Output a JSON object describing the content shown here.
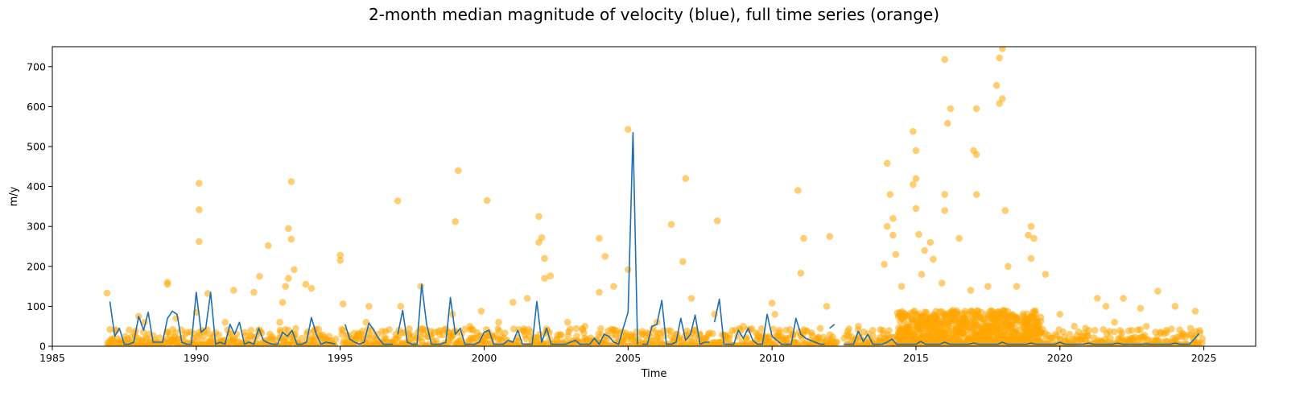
{
  "chart_data": {
    "type": "scatter",
    "title": "2-month median magnitude of velocity (blue), full time series (orange)",
    "xlabel": "Time",
    "ylabel": "m/y",
    "xlim": [
      1985,
      2026.8
    ],
    "ylim": [
      0,
      750
    ],
    "x_ticks": [
      1985,
      1990,
      1995,
      2000,
      2005,
      2010,
      2015,
      2020,
      2025
    ],
    "y_ticks": [
      0,
      100,
      200,
      300,
      400,
      500,
      600,
      700
    ],
    "grid": false,
    "legend": "none",
    "colors": {
      "median": "#1f6fb0",
      "full": "#ffa500"
    },
    "series": [
      {
        "kind": "scatter",
        "color": "#ffa500",
        "x": [
          1986.9,
          1987.0,
          1987.3,
          1987.6,
          1988.0,
          1988.2,
          1988.5,
          1989.0,
          1989.0,
          1989.3,
          1989.5,
          1989.9,
          1990.0,
          1990.1,
          1990.1,
          1990.1,
          1990.2,
          1990.4,
          1990.9,
          1991.0,
          1991.3,
          1991.4,
          1991.9,
          1992.0,
          1992.2,
          1992.5,
          1992.9,
          1993.0,
          1993.1,
          1993.2,
          1993.2,
          1993.3,
          1993.3,
          1993.4,
          1993.8,
          1994.0,
          1994.1,
          1994.5,
          1995.0,
          1995.0,
          1995.1,
          1995.1,
          1995.5,
          1995.9,
          1996.0,
          1996.3,
          1996.5,
          1997.0,
          1997.1,
          1997.8,
          1998.0,
          1998.9,
          1999.0,
          1999.1,
          1999.5,
          1999.9,
          2000.1,
          2000.5,
          2001.0,
          2001.5,
          2001.9,
          2001.9,
          2002.0,
          2002.1,
          2002.1,
          2002.3,
          2002.9,
          2003.5,
          2004.0,
          2004.0,
          2004.2,
          2004.5,
          2005.0,
          2005.0,
          2005.5,
          2006.0,
          2006.5,
          2006.9,
          2007.0,
          2007.2,
          2007.5,
          2008.0,
          2008.1,
          2008.5,
          2009.0,
          2009.5,
          2010.0,
          2010.1,
          2010.5,
          2010.9,
          2011.0,
          2011.1,
          2011.9,
          2012.0,
          2012.5,
          2013.0,
          2013.5,
          2013.9,
          2014.0,
          2014.0,
          2014.1,
          2014.2,
          2014.2,
          2014.3,
          2014.5,
          2014.6,
          2014.9,
          2014.9,
          2015.0,
          2015.0,
          2015.0,
          2015.1,
          2015.2,
          2015.3,
          2015.5,
          2015.6,
          2015.9,
          2016.0,
          2016.0,
          2016.0,
          2016.1,
          2016.2,
          2016.5,
          2016.9,
          2017.0,
          2017.1,
          2017.1,
          2017.1,
          2017.5,
          2017.8,
          2017.9,
          2017.9,
          2018.0,
          2018.0,
          2018.1,
          2018.2,
          2018.5,
          2018.9,
          2019.0,
          2019.0,
          2019.1,
          2019.5,
          2020.0,
          2020.5,
          2021.0,
          2021.3,
          2021.6,
          2021.9,
          2022.2,
          2022.5,
          2022.8,
          2023.0,
          2023.4,
          2023.7,
          2024.0,
          2024.3,
          2024.7
        ],
        "y": [
          133,
          42,
          10,
          5,
          75,
          60,
          8,
          160,
          155,
          70,
          20,
          20,
          85,
          408,
          342,
          262,
          40,
          132,
          10,
          60,
          140,
          30,
          40,
          135,
          175,
          252,
          60,
          110,
          150,
          170,
          295,
          268,
          412,
          192,
          155,
          145,
          40,
          10,
          215,
          228,
          106,
          40,
          10,
          60,
          100,
          30,
          10,
          364,
          100,
          150,
          40,
          80,
          312,
          440,
          50,
          88,
          365,
          60,
          110,
          120,
          325,
          260,
          272,
          170,
          220,
          176,
          60,
          50,
          270,
          135,
          225,
          150,
          192,
          543,
          30,
          60,
          305,
          212,
          420,
          120,
          30,
          80,
          314,
          20,
          50,
          20,
          108,
          80,
          20,
          390,
          183,
          270,
          100,
          275,
          20,
          50,
          40,
          205,
          300,
          458,
          380,
          320,
          278,
          230,
          150,
          80,
          538,
          405,
          490,
          420,
          345,
          280,
          180,
          240,
          260,
          218,
          158,
          340,
          380,
          718,
          558,
          595,
          270,
          140,
          490,
          595,
          380,
          480,
          150,
          653,
          608,
          722,
          620,
          745,
          340,
          200,
          150,
          278,
          220,
          300,
          270,
          180,
          80,
          50,
          40,
          120,
          100,
          60,
          120,
          40,
          95,
          50,
          138,
          40,
          100,
          30,
          88
        ],
        "note_density": "dense points under ~60 m/y throughout; very dense 2014–2019"
      },
      {
        "kind": "line",
        "color": "#1f6fb0",
        "segments": [
          {
            "x": [
              1987.0,
              1987.17,
              1987.33,
              1987.5,
              1987.67,
              1987.83,
              1988.0,
              1988.17,
              1988.33,
              1988.5,
              1988.67,
              1988.83,
              1989.0,
              1989.17,
              1989.33,
              1989.5,
              1989.67,
              1989.83,
              1990.0,
              1990.17,
              1990.33,
              1990.5,
              1990.67,
              1990.83,
              1991.0,
              1991.17,
              1991.33,
              1991.5,
              1991.67,
              1991.83,
              1992.0,
              1992.17,
              1992.33,
              1992.5,
              1992.67,
              1992.83,
              1993.0,
              1993.17,
              1993.33,
              1993.5,
              1993.67,
              1993.83,
              1994.0,
              1994.17,
              1994.33,
              1994.5,
              1994.67,
              1994.83
            ],
            "y": [
              112,
              25,
              45,
              5,
              5,
              10,
              75,
              40,
              85,
              10,
              10,
              10,
              70,
              88,
              80,
              10,
              5,
              5,
              135,
              35,
              45,
              135,
              5,
              10,
              5,
              55,
              30,
              60,
              5,
              10,
              5,
              45,
              15,
              8,
              5,
              5,
              35,
              25,
              40,
              5,
              5,
              10,
              72,
              30,
              5,
              10,
              8,
              5
            ]
          },
          {
            "x": [
              1995.17,
              1995.33,
              1995.5,
              1995.67,
              1995.83,
              1996.0,
              1996.17,
              1996.33,
              1996.5,
              1996.67,
              1996.83
            ],
            "y": [
              55,
              18,
              10,
              5,
              10,
              58,
              40,
              20,
              5,
              5,
              5
            ]
          },
          {
            "x": [
              1997.0,
              1997.17,
              1997.33,
              1997.5,
              1997.67,
              1997.83,
              1998.0,
              1998.17,
              1998.33,
              1998.5,
              1998.67,
              1998.83,
              1999.0,
              1999.17,
              1999.33,
              1999.5,
              1999.67,
              1999.83,
              2000.0,
              2000.17,
              2000.33,
              2000.5,
              2000.67,
              2000.83,
              2001.0,
              2001.17,
              2001.33,
              2001.5,
              2001.67,
              2001.83,
              2002.0,
              2002.17,
              2002.33,
              2002.5,
              2002.67,
              2002.83,
              2003.0,
              2003.17,
              2003.33,
              2003.5,
              2003.67,
              2003.83,
              2004.0,
              2004.17,
              2004.33,
              2004.5,
              2004.67,
              2004.83,
              2005.0,
              2005.17,
              2005.33
            ],
            "y": [
              30,
              90,
              10,
              5,
              5,
              155,
              55,
              5,
              5,
              5,
              10,
              122,
              30,
              45,
              5,
              5,
              5,
              10,
              35,
              40,
              5,
              5,
              5,
              15,
              10,
              40,
              5,
              5,
              5,
              112,
              10,
              45,
              5,
              5,
              5,
              5,
              10,
              15,
              5,
              5,
              5,
              20,
              5,
              30,
              25,
              10,
              5,
              45,
              85,
              535,
              5
            ]
          },
          {
            "x": [
              2005.5,
              2005.67,
              2005.83,
              2006.0,
              2006.17,
              2006.33,
              2006.5,
              2006.67,
              2006.83,
              2007.0,
              2007.17,
              2007.33,
              2007.5,
              2007.67,
              2007.83
            ],
            "y": [
              5,
              5,
              50,
              55,
              115,
              5,
              5,
              10,
              70,
              15,
              30,
              78,
              5,
              10,
              10
            ]
          },
          {
            "x": [
              2008.0,
              2008.17,
              2008.33,
              2008.5,
              2008.67,
              2008.83,
              2009.0,
              2009.17,
              2009.33,
              2009.5,
              2009.67,
              2009.83,
              2010.0,
              2010.17,
              2010.33,
              2010.5,
              2010.67,
              2010.83,
              2011.0,
              2011.17,
              2011.33,
              2011.5,
              2011.67,
              2011.83
            ],
            "y": [
              60,
              118,
              5,
              5,
              5,
              40,
              20,
              45,
              15,
              5,
              5,
              80,
              25,
              15,
              5,
              5,
              5,
              70,
              30,
              20,
              15,
              10,
              5,
              5
            ]
          },
          {
            "x": [
              2012.0,
              2012.17
            ],
            "y": [
              45,
              55
            ]
          },
          {
            "x": [
              2012.5,
              2012.67,
              2012.83,
              2013.0,
              2013.17,
              2013.33,
              2013.5,
              2013.67,
              2013.83,
              2014.0,
              2014.17,
              2014.33,
              2014.5,
              2014.67,
              2014.83,
              2015.0,
              2015.17,
              2015.33,
              2015.5,
              2015.67,
              2015.83,
              2016.0,
              2016.17,
              2016.33,
              2016.5,
              2016.67,
              2016.83,
              2017.0,
              2017.17,
              2017.33,
              2017.5,
              2017.67,
              2017.83,
              2018.0,
              2018.17,
              2018.33,
              2018.5,
              2018.67,
              2018.83,
              2019.0,
              2019.17,
              2019.33,
              2019.5,
              2019.67,
              2019.83,
              2020.0,
              2020.17,
              2020.33,
              2020.5,
              2020.67,
              2020.83,
              2021.0,
              2021.17,
              2021.33,
              2021.5,
              2021.67,
              2021.83,
              2022.0,
              2022.17,
              2022.33,
              2022.5,
              2022.67,
              2022.83,
              2023.0,
              2023.17,
              2023.33,
              2023.5,
              2023.67,
              2023.83,
              2024.0,
              2024.17,
              2024.33,
              2024.5,
              2024.67,
              2024.83
            ],
            "y": [
              5,
              5,
              5,
              38,
              12,
              30,
              5,
              5,
              5,
              10,
              18,
              5,
              5,
              5,
              5,
              5,
              12,
              5,
              5,
              5,
              5,
              10,
              5,
              5,
              5,
              5,
              5,
              8,
              5,
              5,
              5,
              5,
              5,
              10,
              5,
              5,
              5,
              5,
              5,
              8,
              5,
              5,
              5,
              5,
              5,
              10,
              5,
              5,
              5,
              5,
              5,
              8,
              5,
              5,
              5,
              5,
              5,
              8,
              5,
              5,
              5,
              5,
              5,
              6,
              5,
              5,
              5,
              5,
              5,
              8,
              5,
              5,
              5,
              18,
              32
            ]
          }
        ]
      }
    ]
  }
}
